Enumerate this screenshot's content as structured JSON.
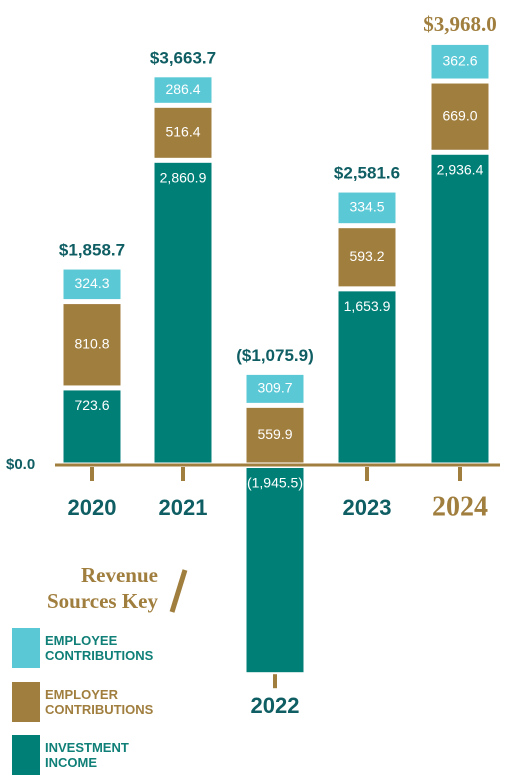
{
  "chart_data": {
    "type": "stacked-bar",
    "categories": [
      "2020",
      "2021",
      "2022",
      "2023",
      "2024"
    ],
    "series": [
      {
        "name": "INVESTMENT INCOME",
        "color": "#007f77",
        "values": [
          723.6,
          2860.9,
          -1945.5,
          1653.9,
          2936.4
        ],
        "value_labels": [
          "723.6",
          "2,860.9",
          "(1,945.5)",
          "1,653.9",
          "2,936.4"
        ]
      },
      {
        "name": "EMPLOYER CONTRIBUTIONS",
        "color": "#a07e3e",
        "values": [
          810.8,
          516.4,
          559.9,
          593.2,
          669.0
        ],
        "value_labels": [
          "810.8",
          "516.4",
          "559.9",
          "593.2",
          "669.0"
        ]
      },
      {
        "name": "EMPLOYEE CONTRIBUTIONS",
        "color": "#5bc8d6",
        "values": [
          324.3,
          286.4,
          309.7,
          334.5,
          362.6
        ],
        "value_labels": [
          "324.3",
          "286.4",
          "309.7",
          "334.5",
          "362.6"
        ]
      }
    ],
    "total_labels": [
      "$1,858.7",
      "$3,663.7",
      "($1,075.9)",
      "$2,581.6",
      "$3,968.0"
    ],
    "ylim": [
      -2000,
      4000
    ],
    "yticks": [
      {
        "value": 0,
        "label": "$0.0"
      }
    ],
    "legend_title": [
      "Revenue",
      "Sources Key"
    ]
  }
}
